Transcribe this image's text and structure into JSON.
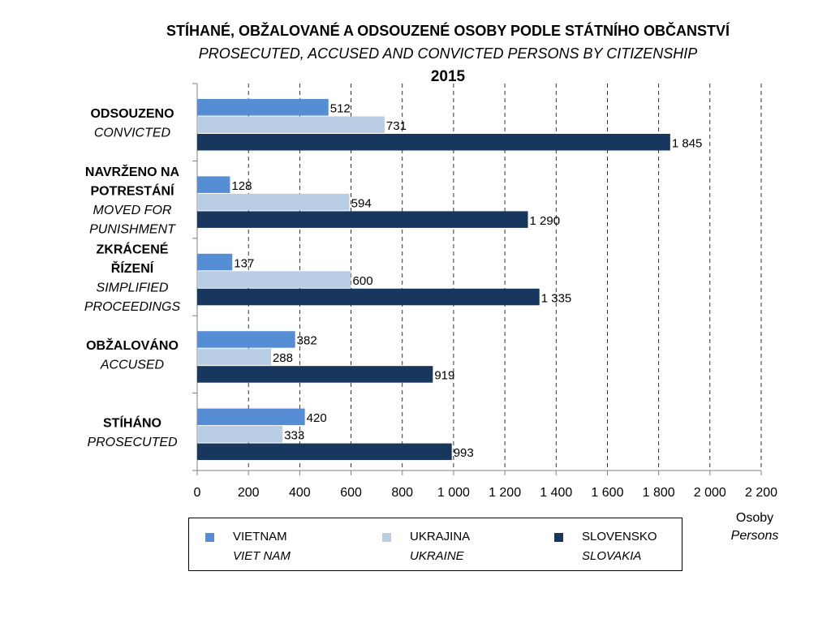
{
  "title_cz": "STÍHANÉ, OBŽALOVANÉ A ODSOUZENÉ OSOBY PODLE STÁTNÍHO OBČANSTVÍ",
  "title_en": "PROSECUTED, ACCUSED AND CONVICTED PERSONS BY CITIZENSHIP",
  "year": "2015",
  "unit_cz": "Osoby",
  "unit_en": "Persons",
  "chart_data": {
    "type": "bar",
    "orientation": "horizontal",
    "categories": [
      {
        "cz": [
          "ODSOUZENO"
        ],
        "en": [
          "CONVICTED"
        ]
      },
      {
        "cz": [
          "NAVRŽENO NA",
          "POTRESTÁNÍ"
        ],
        "en": [
          "MOVED FOR",
          "PUNISHMENT"
        ]
      },
      {
        "cz": [
          "ZKRÁCENÉ",
          "ŘÍZENÍ"
        ],
        "en": [
          "SIMPLIFIED",
          "PROCEEDINGS"
        ]
      },
      {
        "cz": [
          "OBŽALOVÁNO"
        ],
        "en": [
          "ACCUSED"
        ]
      },
      {
        "cz": [
          "STÍHÁNO"
        ],
        "en": [
          "PROSECUTED"
        ]
      }
    ],
    "series": [
      {
        "name": "VIETNAM",
        "name_en": "VIET NAM",
        "color": "#558ed5",
        "values": [
          512,
          128,
          137,
          382,
          420
        ],
        "labels": [
          "512",
          "128",
          "137",
          "382",
          "420"
        ]
      },
      {
        "name": "UKRAJINA",
        "name_en": "UKRAINE",
        "color": "#b9cde5",
        "values": [
          731,
          594,
          600,
          288,
          333
        ],
        "labels": [
          "731",
          "594",
          "600",
          "288",
          "333"
        ]
      },
      {
        "name": "SLOVENSKO",
        "name_en": "SLOVAKIA",
        "color": "#17375e",
        "values": [
          1845,
          1290,
          1335,
          919,
          993
        ],
        "labels": [
          "1 845",
          "1 290",
          "1 335",
          "919",
          "993"
        ]
      }
    ],
    "xlim": [
      0,
      2200
    ],
    "ticks": [
      0,
      200,
      400,
      600,
      800,
      1000,
      1200,
      1400,
      1600,
      1800,
      2000,
      2200
    ],
    "tick_labels": [
      "0",
      "200",
      "400",
      "600",
      "800",
      "1 000",
      "1 200",
      "1 400",
      "1 600",
      "1 800",
      "2 000",
      "2 200"
    ],
    "grid": "vertical dashed",
    "legend_position": "bottom"
  }
}
